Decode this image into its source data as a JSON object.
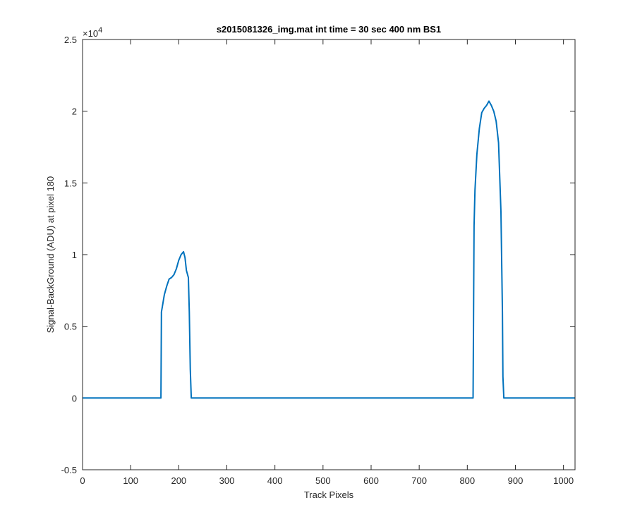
{
  "chart_data": {
    "type": "line",
    "title": "s2015081326_img.mat int time = 30 sec  400 nm BS1",
    "xlabel": "Track Pixels",
    "ylabel": "Signal-BackGround (ADU) at pixel 180",
    "xlim": [
      0,
      1024
    ],
    "ylim": [
      -5000,
      25000
    ],
    "x_ticks": [
      0,
      100,
      200,
      300,
      400,
      500,
      600,
      700,
      800,
      900,
      1000
    ],
    "x_tick_labels": [
      "0",
      "100",
      "200",
      "300",
      "400",
      "500",
      "600",
      "700",
      "800",
      "900",
      "1000"
    ],
    "y_ticks": [
      -5000,
      0,
      5000,
      10000,
      15000,
      20000,
      25000
    ],
    "y_tick_labels": [
      "-0.5",
      "0",
      "0.5",
      "1",
      "1.5",
      "2",
      "2.5"
    ],
    "y_exponent_label": "×10",
    "y_exponent_power": "4",
    "grid": false,
    "line_color": "#0072BD",
    "series": [
      {
        "x": [
          0,
          160,
          163,
          164,
          166,
          170,
          175,
          180,
          185,
          190,
          195,
          200,
          205,
          210,
          213,
          216,
          220,
          222,
          224,
          226,
          228,
          240,
          400,
          600,
          800,
          810,
          812,
          814,
          816,
          820,
          825,
          830,
          835,
          840,
          845,
          850,
          855,
          860,
          865,
          870,
          873,
          874,
          876,
          880,
          900,
          1024
        ],
        "y": [
          0,
          0,
          0,
          6000,
          6400,
          7200,
          7800,
          8300,
          8400,
          8600,
          9000,
          9600,
          10000,
          10200,
          9800,
          8900,
          8400,
          6000,
          2000,
          0,
          0,
          0,
          0,
          0,
          0,
          0,
          0,
          12000,
          14500,
          17000,
          18800,
          19900,
          20200,
          20400,
          20700,
          20400,
          20000,
          19300,
          17800,
          13000,
          6000,
          1500,
          0,
          0,
          0,
          0
        ]
      }
    ]
  }
}
